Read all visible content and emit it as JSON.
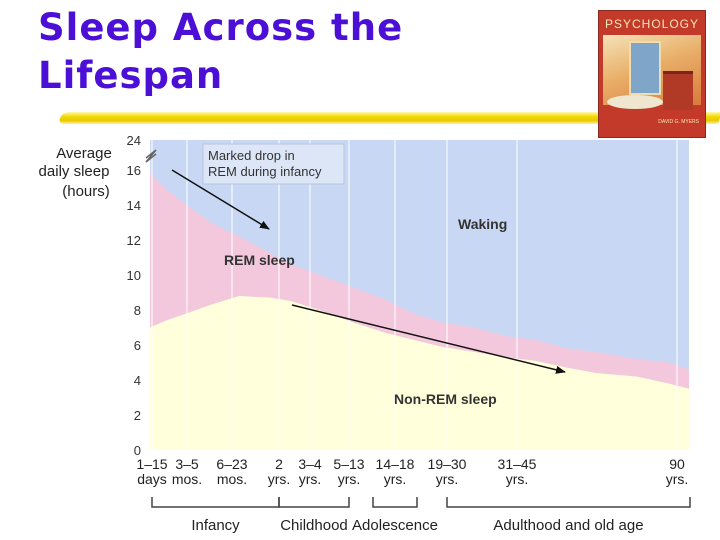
{
  "slide": {
    "title_line1": "Sleep Across the",
    "title_line2": "Lifespan",
    "book_title": "PSYCHOLOGY",
    "book_author": "DAVID G. MYERS",
    "accent_color": "#4b0fd6",
    "rule_color": "#f2d900"
  },
  "chart_data": {
    "type": "area",
    "title": "",
    "ylabel": [
      "Average",
      "daily sleep",
      "(hours)"
    ],
    "yticks": [
      0,
      2,
      4,
      6,
      8,
      10,
      12,
      14,
      16,
      24
    ],
    "ylim": [
      0,
      24
    ],
    "y_axis_break": true,
    "x_age_labels": [
      {
        "top": "1–15",
        "bottom": "days"
      },
      {
        "top": "3–5",
        "bottom": "mos."
      },
      {
        "top": "6–23",
        "bottom": "mos."
      },
      {
        "top": "2",
        "bottom": "yrs."
      },
      {
        "top": "3–4",
        "bottom": "yrs."
      },
      {
        "top": "5–13",
        "bottom": "yrs."
      },
      {
        "top": "14–18",
        "bottom": "yrs."
      },
      {
        "top": "19–30",
        "bottom": "yrs."
      },
      {
        "top": "31–45",
        "bottom": "yrs."
      },
      {
        "top": "90",
        "bottom": "yrs."
      }
    ],
    "x_ages": [
      0.02,
      0.33,
      1.2,
      2,
      3.5,
      9,
      16,
      24.5,
      38,
      90
    ],
    "life_stages": [
      {
        "label": "Infancy",
        "from": 0,
        "to": 3
      },
      {
        "label": "Childhood",
        "from": 3,
        "to": 5
      },
      {
        "label": "Adolescence",
        "from": 6,
        "to": 6
      },
      {
        "label": "Adulthood and old age",
        "from": 7,
        "to": 9
      }
    ],
    "series": [
      {
        "name": "Non-REM sleep",
        "x": [
          0,
          0.4,
          0.9,
          1.5,
          2.2,
          3.0,
          3.5,
          4.3,
          5.0,
          5.8,
          6.5,
          7.2,
          8.0,
          8.8,
          9.5,
          10.3,
          11.0,
          12.0,
          12.8,
          13.3
        ],
        "y": [
          7.0,
          7.4,
          7.8,
          8.3,
          8.8,
          8.7,
          8.5,
          7.9,
          7.3,
          6.7,
          6.3,
          5.9,
          5.6,
          5.3,
          5.1,
          4.7,
          4.4,
          4.2,
          3.8,
          3.5
        ],
        "color": "#ffffdc"
      },
      {
        "name": "REM sleep",
        "x": [
          0,
          0.4,
          0.9,
          1.5,
          2.2,
          3.0,
          3.5,
          4.3,
          5.0,
          5.8,
          6.5,
          7.2,
          8.0,
          8.8,
          9.5,
          10.3,
          11.0,
          12.0,
          12.8,
          13.3
        ],
        "y": [
          15.8,
          14.9,
          14.0,
          13.0,
          12.2,
          11.2,
          10.6,
          9.9,
          9.3,
          8.6,
          7.8,
          7.3,
          7.0,
          6.5,
          6.3,
          5.8,
          5.6,
          5.2,
          5.0,
          4.6
        ],
        "color": "#f4c8dc"
      }
    ],
    "waking_color": "#c8d8f4",
    "labels": {
      "waking": "Waking",
      "rem": "REM sleep",
      "nonrem": "Non-REM sleep"
    },
    "annotation": {
      "line1": "Marked drop in",
      "line2": "REM during infancy"
    }
  }
}
